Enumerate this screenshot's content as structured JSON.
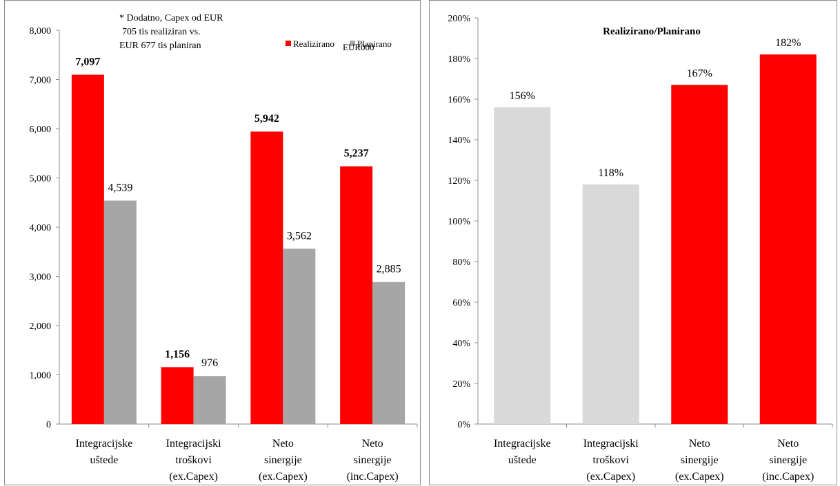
{
  "chart_data": [
    {
      "type": "bar",
      "note": [
        "* Dodatno, Capex od EUR",
        "705 tis realiziran vs.",
        "EUR 677 tis planiran"
      ],
      "unit_label": "EUR000",
      "legend_position": "top-right",
      "categories": [
        [
          "Integracijske",
          "uštede"
        ],
        [
          "Integracijski",
          "troškovi",
          "(ex.Capex)"
        ],
        [
          "Neto",
          "sinergije",
          "(ex.Capex)"
        ],
        [
          "Neto",
          "sinergije",
          "(inc.Capex)"
        ]
      ],
      "series": [
        {
          "name": "Realizirano",
          "color": "#ff0000",
          "values": [
            7097,
            1156,
            5942,
            5237
          ],
          "labels": [
            "7,097",
            "1,156",
            "5,942",
            "5,237"
          ],
          "label_bold": true
        },
        {
          "name": "Planirano",
          "color": "#a6a6a6",
          "values": [
            4539,
            976,
            3562,
            2885
          ],
          "labels": [
            "4,539",
            "976",
            "3,562",
            "2,885"
          ],
          "label_bold": false
        }
      ],
      "ylim": [
        0,
        8000
      ],
      "yticks": [
        0,
        1000,
        2000,
        3000,
        4000,
        5000,
        6000,
        7000,
        8000
      ],
      "ytick_labels": [
        "0",
        "1,000",
        "2,000",
        "3,000",
        "4,000",
        "5,000",
        "6,000",
        "7,000",
        "8,000"
      ],
      "grid": false
    },
    {
      "type": "bar",
      "title": "Realizirano/Planirano",
      "categories": [
        [
          "Integracijske",
          "uštede"
        ],
        [
          "Integracijski",
          "troškovi",
          "(ex.Capex)"
        ],
        [
          "Neto",
          "sinergije",
          "(ex.Capex)"
        ],
        [
          "Neto",
          "sinergije",
          "(inc.Capex)"
        ]
      ],
      "values": [
        156,
        118,
        167,
        182
      ],
      "labels": [
        "156%",
        "118%",
        "167%",
        "182%"
      ],
      "colors": [
        "#d9d9d9",
        "#d9d9d9",
        "#ff0000",
        "#ff0000"
      ],
      "ylim": [
        0,
        200
      ],
      "yticks": [
        0,
        20,
        40,
        60,
        80,
        100,
        120,
        140,
        160,
        180,
        200
      ],
      "ytick_labels": [
        "0%",
        "20%",
        "40%",
        "60%",
        "80%",
        "100%",
        "120%",
        "140%",
        "160%",
        "180%",
        "200%"
      ],
      "grid": false
    }
  ]
}
